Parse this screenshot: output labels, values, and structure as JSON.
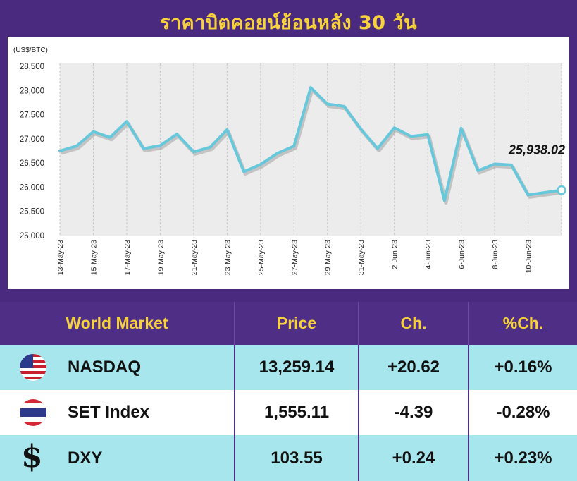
{
  "title": "ราคาบิตคอยน์ย้อนหลัง 30 วัน",
  "chart_data": {
    "type": "line",
    "ylabel": "(US$/BTC)",
    "ylim": [
      25000,
      28500
    ],
    "yticks": [
      "25,000",
      "25,500",
      "26,000",
      "26,500",
      "27,000",
      "27,500",
      "28,000",
      "28,500"
    ],
    "x": [
      "13-May-23",
      "14-May-23",
      "15-May-23",
      "16-May-23",
      "17-May-23",
      "18-May-23",
      "19-May-23",
      "20-May-23",
      "21-May-23",
      "22-May-23",
      "23-May-23",
      "24-May-23",
      "25-May-23",
      "26-May-23",
      "27-May-23",
      "28-May-23",
      "29-May-23",
      "30-May-23",
      "31-May-23",
      "1-Jun-23",
      "2-Jun-23",
      "3-Jun-23",
      "4-Jun-23",
      "5-Jun-23",
      "6-Jun-23",
      "7-Jun-23",
      "8-Jun-23",
      "9-Jun-23",
      "10-Jun-23",
      "11-Jun-23",
      "12-Jun-23"
    ],
    "xtick_labels": [
      "13-May-23",
      "15-May-23",
      "17-May-23",
      "19-May-23",
      "21-May-23",
      "23-May-23",
      "25-May-23",
      "27-May-23",
      "29-May-23",
      "31-May-23",
      "2-Jun-23",
      "4-Jun-23",
      "6-Jun-23",
      "8-Jun-23",
      "10-Jun-23"
    ],
    "series": [
      {
        "values": [
          26750,
          26850,
          27150,
          27030,
          27360,
          26800,
          26860,
          27100,
          26730,
          26830,
          27190,
          26320,
          26470,
          26700,
          26850,
          28060,
          27720,
          27670,
          27200,
          26800,
          27230,
          27050,
          27090,
          25720,
          27220,
          26340,
          26480,
          26460,
          25840,
          25890,
          25938.02
        ]
      }
    ],
    "annotation": "25,938.02",
    "line_color": "#67c8dc",
    "grid": "vertical"
  },
  "table": {
    "headers": [
      "World Market",
      "Price",
      "Ch.",
      "%Ch."
    ],
    "rows": [
      {
        "flag": "us-flag-icon",
        "name": "NASDAQ",
        "price": "13,259.14",
        "ch": "+20.62",
        "pct": "+0.16%"
      },
      {
        "flag": "thai-flag-icon",
        "name": "SET Index",
        "price": "1,555.11",
        "ch": "-4.39",
        "pct": "-0.28%"
      },
      {
        "flag": "dollar-icon",
        "name": "DXY",
        "price": "103.55",
        "ch": "+0.24",
        "pct": "+0.23%"
      }
    ]
  }
}
